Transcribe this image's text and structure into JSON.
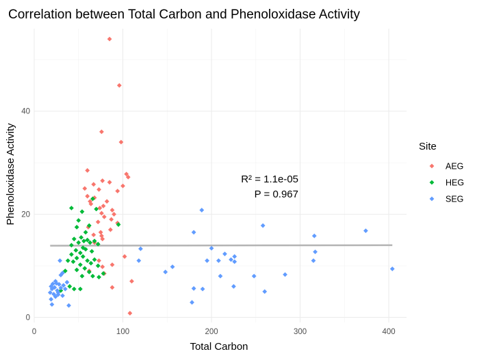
{
  "chart_data": {
    "type": "scatter",
    "title": "Correlation between Total Carbon and Phenoloxidase Activity",
    "xlabel": "Total Carbon",
    "ylabel": "Phenoloxidase Activity",
    "xlim": [
      0,
      420
    ],
    "ylim": [
      -1,
      56
    ],
    "x_ticks": [
      0,
      100,
      200,
      300,
      400
    ],
    "y_ticks": [
      0,
      20,
      40
    ],
    "grid": true,
    "legend": {
      "title": "Site",
      "position": "right",
      "entries": [
        {
          "label": "AEG",
          "color": "#F8766D"
        },
        {
          "label": "HEG",
          "color": "#00BA38"
        },
        {
          "label": "SEG",
          "color": "#619CFF"
        }
      ]
    },
    "annotations": [
      "R² = 1.1e-05",
      "P = 0.967"
    ],
    "regression_line": {
      "x": [
        18,
        404
      ],
      "y": [
        13.9,
        14.0
      ],
      "color": "#b3b3b3"
    },
    "series": [
      {
        "name": "AEG",
        "color": "#F8766D",
        "points": [
          [
            85,
            54
          ],
          [
            96,
            45
          ],
          [
            76,
            36
          ],
          [
            98,
            34
          ],
          [
            60,
            28.5
          ],
          [
            104,
            27.8
          ],
          [
            106,
            27.2
          ],
          [
            77,
            26.5
          ],
          [
            85,
            26.2
          ],
          [
            67,
            25.8
          ],
          [
            100,
            25.5
          ],
          [
            57,
            25
          ],
          [
            73,
            24.8
          ],
          [
            94,
            24.5
          ],
          [
            60,
            23.5
          ],
          [
            68,
            23.2
          ],
          [
            63,
            22.5
          ],
          [
            82,
            22.5
          ],
          [
            64,
            22
          ],
          [
            78,
            21.6
          ],
          [
            74,
            21.2
          ],
          [
            88,
            20.8
          ],
          [
            90,
            20
          ],
          [
            76,
            20.2
          ],
          [
            79,
            19.5
          ],
          [
            87,
            19
          ],
          [
            72,
            18.5
          ],
          [
            94,
            18.3
          ],
          [
            61,
            17.5
          ],
          [
            86,
            17
          ],
          [
            75,
            16.5
          ],
          [
            67,
            16
          ],
          [
            76,
            15.8
          ],
          [
            77,
            15.2
          ],
          [
            68,
            14.5
          ],
          [
            102,
            11.8
          ],
          [
            73,
            11
          ],
          [
            88,
            10.2
          ],
          [
            77,
            9.8
          ],
          [
            62,
            9
          ],
          [
            79,
            8.5
          ],
          [
            110,
            7
          ],
          [
            88,
            5.8
          ],
          [
            108,
            0.8
          ]
        ]
      },
      {
        "name": "HEG",
        "color": "#00BA38",
        "points": [
          [
            42,
            21.2
          ],
          [
            54,
            20.5
          ],
          [
            70,
            21
          ],
          [
            66,
            23
          ],
          [
            50,
            18.8
          ],
          [
            48,
            17.5
          ],
          [
            62,
            17.8
          ],
          [
            95,
            18
          ],
          [
            58,
            16.5
          ],
          [
            53,
            15.5
          ],
          [
            45,
            15.2
          ],
          [
            60,
            15
          ],
          [
            68,
            14.8
          ],
          [
            50,
            14.5
          ],
          [
            56,
            14.8
          ],
          [
            63,
            14.5
          ],
          [
            42,
            14
          ],
          [
            72,
            14.2
          ],
          [
            55,
            13.5
          ],
          [
            47,
            13
          ],
          [
            58,
            13.2
          ],
          [
            65,
            12.8
          ],
          [
            52,
            12.5
          ],
          [
            42,
            12.2
          ],
          [
            48,
            11.5
          ],
          [
            55,
            11.8
          ],
          [
            60,
            11
          ],
          [
            68,
            11.2
          ],
          [
            38,
            11
          ],
          [
            44,
            10.8
          ],
          [
            52,
            10.2
          ],
          [
            64,
            10.5
          ],
          [
            72,
            10
          ],
          [
            57,
            9.5
          ],
          [
            35,
            9
          ],
          [
            48,
            9.2
          ],
          [
            62,
            8.8
          ],
          [
            78,
            8.5
          ],
          [
            66,
            8
          ],
          [
            54,
            8
          ],
          [
            73,
            7.8
          ],
          [
            40,
            6
          ],
          [
            45,
            5.5
          ],
          [
            52,
            5.5
          ],
          [
            30,
            5.2
          ]
        ]
      },
      {
        "name": "SEG",
        "color": "#619CFF",
        "points": [
          [
            189,
            20.8
          ],
          [
            258,
            17.8
          ],
          [
            374,
            16.8
          ],
          [
            180,
            16.5
          ],
          [
            316,
            15.8
          ],
          [
            200,
            13.4
          ],
          [
            120,
            13.3
          ],
          [
            317,
            12.7
          ],
          [
            215,
            12.3
          ],
          [
            226,
            11.8
          ],
          [
            208,
            11
          ],
          [
            195,
            11
          ],
          [
            222,
            11.2
          ],
          [
            226,
            10.8
          ],
          [
            315,
            11
          ],
          [
            118,
            11
          ],
          [
            156,
            9.8
          ],
          [
            404,
            9.4
          ],
          [
            148,
            8.8
          ],
          [
            283,
            8.3
          ],
          [
            210,
            8
          ],
          [
            248,
            8
          ],
          [
            30,
            8.2
          ],
          [
            32,
            8.6
          ],
          [
            225,
            6
          ],
          [
            180,
            5.6
          ],
          [
            190,
            5.5
          ],
          [
            260,
            5
          ],
          [
            178,
            2.9
          ],
          [
            39,
            2.3
          ],
          [
            29,
            11
          ],
          [
            19,
            6
          ],
          [
            20,
            5.5
          ],
          [
            21,
            6.5
          ],
          [
            23,
            5.8
          ],
          [
            24,
            7
          ],
          [
            25,
            6.6
          ],
          [
            26,
            5.2
          ],
          [
            27,
            4.8
          ],
          [
            28,
            6.4
          ],
          [
            30,
            5.7
          ],
          [
            33,
            6.2
          ],
          [
            35,
            5.5
          ],
          [
            37,
            6.8
          ],
          [
            22,
            4.5
          ],
          [
            18,
            4.8
          ],
          [
            24,
            4
          ],
          [
            27,
            4.4
          ],
          [
            19,
            3.5
          ],
          [
            20,
            2.5
          ],
          [
            32,
            4.2
          ]
        ]
      }
    ]
  }
}
